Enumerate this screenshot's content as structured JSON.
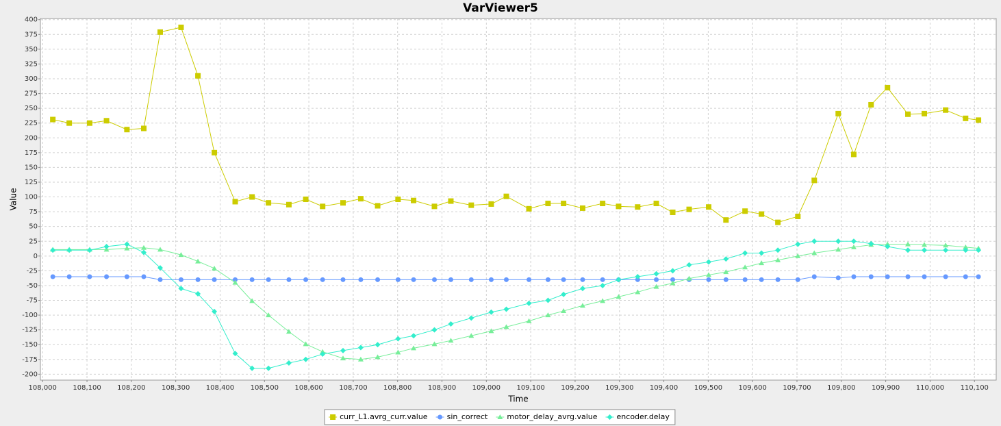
{
  "chart_data": {
    "type": "line",
    "title": "VarViewer5",
    "x_label": "Time",
    "y_label": "Value",
    "x": [
      108023,
      108060,
      108106,
      108144,
      108190,
      108228,
      108265,
      108312,
      108350,
      108387,
      108434,
      108472,
      108509,
      108555,
      108593,
      108631,
      108677,
      108717,
      108755,
      108801,
      108836,
      108883,
      108920,
      108966,
      109011,
      109045,
      109096,
      109139,
      109174,
      109217,
      109262,
      109298,
      109341,
      109383,
      109420,
      109457,
      109501,
      109540,
      109583,
      109620,
      109657,
      109702,
      109739,
      109793,
      109828,
      109867,
      109904,
      109950,
      109987,
      110035,
      110080,
      110109
    ],
    "series": [
      {
        "name": "curr_L1.avrg_curr.value",
        "color": "#cccc00",
        "marker": "square",
        "values": [
          231,
          225,
          225,
          229,
          214,
          216,
          379,
          387,
          305,
          175,
          92,
          100,
          90,
          87,
          96,
          84,
          90,
          97,
          85,
          96,
          94,
          84,
          93,
          86,
          88,
          101,
          80,
          89,
          89,
          81,
          89,
          84,
          83,
          89,
          74,
          79,
          83,
          61,
          76,
          71,
          57,
          67,
          128,
          241,
          172,
          256,
          285,
          240,
          241,
          247,
          233,
          230
        ]
      },
      {
        "name": "sin_correct",
        "color": "#6699ff",
        "marker": "circle",
        "values": [
          -35,
          -35,
          -35,
          -35,
          -35,
          -35,
          -40,
          -40,
          -40,
          -40,
          -40,
          -40,
          -40,
          -40,
          -40,
          -40,
          -40,
          -40,
          -40,
          -40,
          -40,
          -40,
          -40,
          -40,
          -40,
          -40,
          -40,
          -40,
          -40,
          -40,
          -40,
          -40,
          -40,
          -40,
          -40,
          -40,
          -40,
          -40,
          -40,
          -40,
          -40,
          -40,
          -35,
          -37,
          -35,
          -35,
          -35,
          -35,
          -35,
          -35,
          -35,
          -35
        ]
      },
      {
        "name": "motor_delay_avrg.value",
        "color": "#77ee99",
        "marker": "triangle",
        "values": [
          11,
          11,
          11,
          11,
          13,
          14,
          11,
          2,
          -9,
          -21,
          -45,
          -76,
          -100,
          -128,
          -149,
          -162,
          -173,
          -175,
          -171,
          -163,
          -156,
          -149,
          -143,
          -135,
          -127,
          -120,
          -110,
          -100,
          -93,
          -84,
          -76,
          -69,
          -61,
          -52,
          -46,
          -38,
          -32,
          -27,
          -19,
          -12,
          -7,
          0,
          5,
          11,
          15,
          19,
          20,
          20,
          19,
          18,
          15,
          13
        ]
      },
      {
        "name": "encoder.delay",
        "color": "#33eecc",
        "marker": "diamond",
        "values": [
          10,
          10,
          10,
          16,
          20,
          6,
          -20,
          -55,
          -64,
          -94,
          -165,
          -190,
          -190,
          -181,
          -175,
          -166,
          -160,
          -155,
          -150,
          -140,
          -135,
          -125,
          -115,
          -105,
          -95,
          -90,
          -80,
          -75,
          -65,
          -55,
          -50,
          -40,
          -35,
          -30,
          -25,
          -15,
          -10,
          -5,
          5,
          5,
          10,
          20,
          25,
          25,
          25,
          21,
          16,
          10,
          10,
          10,
          10,
          10
        ]
      }
    ],
    "xlim": [
      107995,
      110149
    ],
    "ylim": [
      -210,
      402
    ],
    "xticks": [
      {
        "value": 108000,
        "label": "108,000"
      },
      {
        "value": 108100,
        "label": "108,100"
      },
      {
        "value": 108200,
        "label": "108,200"
      },
      {
        "value": 108300,
        "label": "108,300"
      },
      {
        "value": 108400,
        "label": "108,400"
      },
      {
        "value": 108500,
        "label": "108,500"
      },
      {
        "value": 108600,
        "label": "108,600"
      },
      {
        "value": 108700,
        "label": "108,700"
      },
      {
        "value": 108800,
        "label": "108,800"
      },
      {
        "value": 108900,
        "label": "108,900"
      },
      {
        "value": 109000,
        "label": "109,000"
      },
      {
        "value": 109100,
        "label": "109,100"
      },
      {
        "value": 109200,
        "label": "109,200"
      },
      {
        "value": 109300,
        "label": "109,300"
      },
      {
        "value": 109400,
        "label": "109,400"
      },
      {
        "value": 109500,
        "label": "109,500"
      },
      {
        "value": 109600,
        "label": "109,600"
      },
      {
        "value": 109700,
        "label": "109,700"
      },
      {
        "value": 109800,
        "label": "109,800"
      },
      {
        "value": 109900,
        "label": "109,900"
      },
      {
        "value": 110000,
        "label": "110,000"
      },
      {
        "value": 110100,
        "label": "110,100"
      }
    ],
    "yticks": [
      -200,
      -175,
      -150,
      -125,
      -100,
      -75,
      -50,
      -25,
      0,
      25,
      50,
      75,
      100,
      125,
      150,
      175,
      200,
      225,
      250,
      275,
      300,
      325,
      350,
      375,
      400
    ],
    "grid": true,
    "legend": "bottom"
  }
}
